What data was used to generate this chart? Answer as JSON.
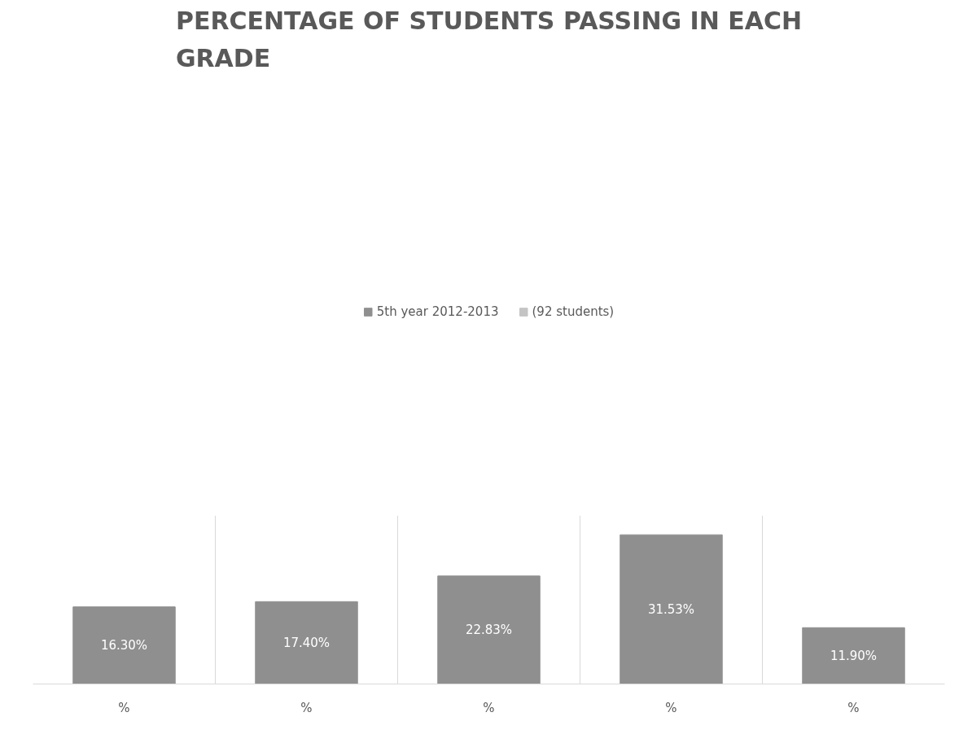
{
  "chart_data": {
    "type": "bar",
    "title": "PERCENTAGE OF STUDENTS PASSING IN EACH GRADE",
    "categories": [
      "%",
      "%",
      "%",
      "%",
      "%"
    ],
    "series": [
      {
        "name": "5th year 2012-2013",
        "color": "#8f8f8f",
        "values": [
          16.3,
          17.4,
          22.83,
          31.53,
          11.9
        ],
        "value_labels": [
          "16.30%",
          "17.40%",
          "22.83%",
          "31.53%",
          "11.90%"
        ]
      },
      {
        "name": "(92 students)",
        "color": "#c4c4c4",
        "values": [
          null,
          null,
          null,
          null,
          null
        ]
      }
    ],
    "ylim": [
      0,
      35.6
    ],
    "tick_labels": "x",
    "grid": "x",
    "legend": "top"
  }
}
